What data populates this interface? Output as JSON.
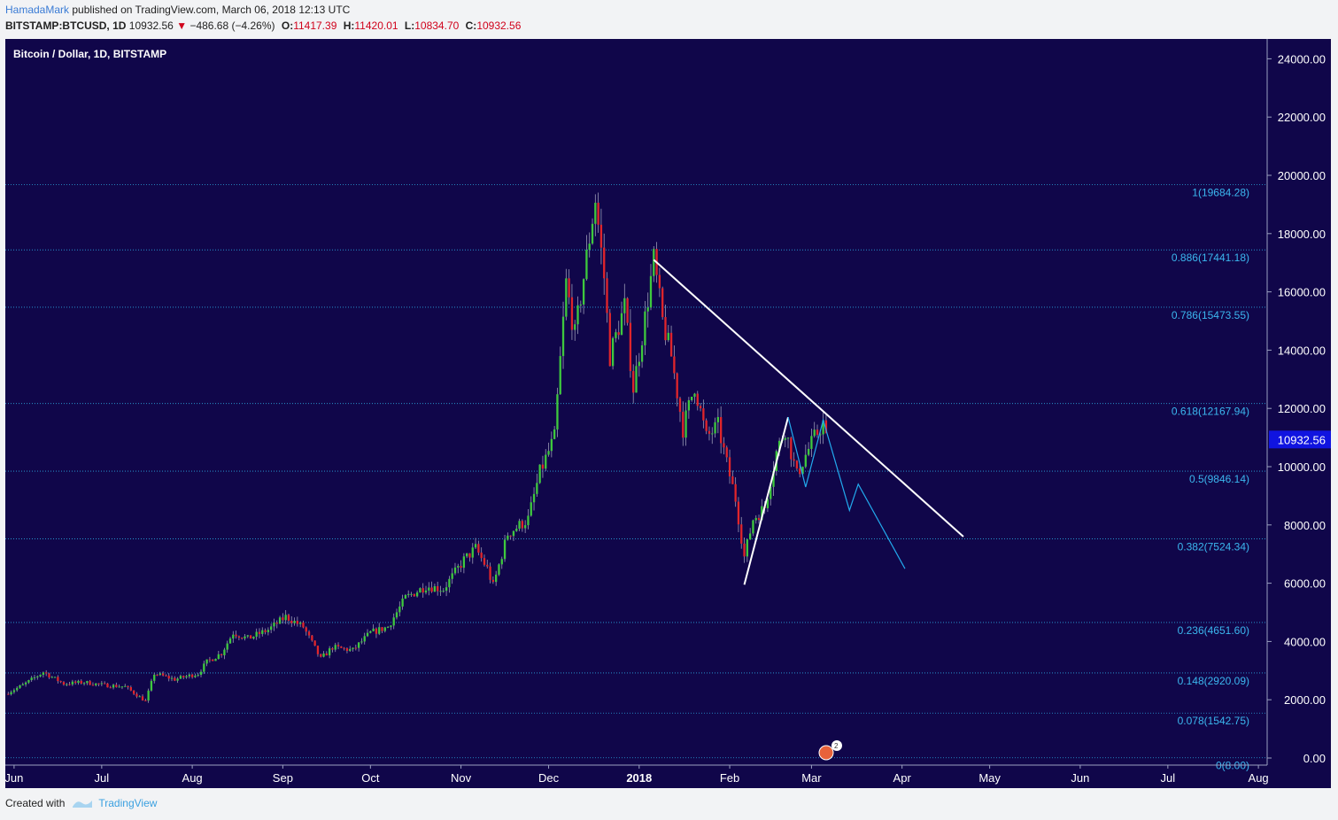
{
  "header": {
    "author": "HamadaMark",
    "published_text": "published on TradingView.com, March 06, 2018 12:13 UTC",
    "symbol": "BITSTAMP:BTCUSD, 1D",
    "last": "10932.56",
    "change": "−486.68 (−4.26%)",
    "o_label": "O:",
    "o_value": "11417.39",
    "h_label": "H:",
    "h_value": "11420.01",
    "l_label": "L:",
    "l_value": "10834.70",
    "c_label": "C:",
    "c_value": "10932.56"
  },
  "footer": {
    "created_with": "Created with",
    "brand": "TradingView"
  },
  "chart_data": {
    "type": "candlestick",
    "title": "Bitcoin / Dollar, 1D, BITSTAMP",
    "x_range": [
      "2017-05-29",
      "2018-08-04"
    ],
    "ylim": [
      0,
      24800
    ],
    "y_ticks": [
      0,
      2000,
      4000,
      6000,
      8000,
      10000,
      12000,
      14000,
      16000,
      18000,
      20000,
      22000,
      24000
    ],
    "y_tick_labels": [
      "0.00",
      "2000.00",
      "4000.00",
      "6000.00",
      "8000.00",
      "10000.00",
      "12000.00",
      "14000.00",
      "16000.00",
      "18000.00",
      "20000.00",
      "22000.00",
      "24000.00"
    ],
    "x_ticks": [
      {
        "label": "Jun",
        "date": "2017-06-01",
        "bold": false
      },
      {
        "label": "Jul",
        "date": "2017-07-01",
        "bold": false
      },
      {
        "label": "Aug",
        "date": "2017-08-01",
        "bold": false
      },
      {
        "label": "Sep",
        "date": "2017-09-01",
        "bold": false
      },
      {
        "label": "Oct",
        "date": "2017-10-01",
        "bold": false
      },
      {
        "label": "Nov",
        "date": "2017-11-01",
        "bold": false
      },
      {
        "label": "Dec",
        "date": "2017-12-01",
        "bold": false
      },
      {
        "label": "2018",
        "date": "2018-01-01",
        "bold": true
      },
      {
        "label": "Feb",
        "date": "2018-02-01",
        "bold": false
      },
      {
        "label": "Mar",
        "date": "2018-03-01",
        "bold": false
      },
      {
        "label": "Apr",
        "date": "2018-04-01",
        "bold": false
      },
      {
        "label": "May",
        "date": "2018-05-01",
        "bold": false
      },
      {
        "label": "Jun",
        "date": "2018-06-01",
        "bold": false
      },
      {
        "label": "Jul",
        "date": "2018-07-01",
        "bold": false
      },
      {
        "label": "Aug",
        "date": "2018-08-01",
        "bold": false
      }
    ],
    "price_label": {
      "value": 10932.56,
      "text": "10932.56"
    },
    "fib_levels": [
      {
        "value": 19684.28,
        "label": "1(19684.28)"
      },
      {
        "value": 17441.18,
        "label": "0.886(17441.18)"
      },
      {
        "value": 15473.55,
        "label": "0.786(15473.55)"
      },
      {
        "value": 12167.94,
        "label": "0.618(12167.94)"
      },
      {
        "value": 9846.14,
        "label": "0.5(9846.14)"
      },
      {
        "value": 7524.34,
        "label": "0.382(7524.34)"
      },
      {
        "value": 4651.6,
        "label": "0.236(4651.60)"
      },
      {
        "value": 2920.09,
        "label": "0.148(2920.09)"
      },
      {
        "value": 1542.75,
        "label": "0.078(1542.75)"
      },
      {
        "value": 8.0,
        "label": "0(8.00)"
      }
    ],
    "price_path": [
      [
        "2017-05-29",
        2200
      ],
      [
        "2017-06-04",
        2500
      ],
      [
        "2017-06-11",
        2950
      ],
      [
        "2017-06-18",
        2550
      ],
      [
        "2017-06-25",
        2600
      ],
      [
        "2017-07-02",
        2500
      ],
      [
        "2017-07-09",
        2450
      ],
      [
        "2017-07-16",
        1950
      ],
      [
        "2017-07-19",
        2900
      ],
      [
        "2017-07-26",
        2700
      ],
      [
        "2017-08-03",
        2900
      ],
      [
        "2017-08-06",
        3300
      ],
      [
        "2017-08-11",
        3600
      ],
      [
        "2017-08-15",
        4300
      ],
      [
        "2017-08-20",
        4100
      ],
      [
        "2017-08-27",
        4400
      ],
      [
        "2017-09-02",
        4850
      ],
      [
        "2017-09-08",
        4500
      ],
      [
        "2017-09-14",
        3400
      ],
      [
        "2017-09-18",
        3800
      ],
      [
        "2017-09-25",
        3700
      ],
      [
        "2017-10-01",
        4300
      ],
      [
        "2017-10-07",
        4500
      ],
      [
        "2017-10-13",
        5500
      ],
      [
        "2017-10-20",
        5900
      ],
      [
        "2017-10-26",
        5800
      ],
      [
        "2017-11-02",
        6800
      ],
      [
        "2017-11-06",
        7200
      ],
      [
        "2017-11-10",
        6500
      ],
      [
        "2017-11-12",
        5900
      ],
      [
        "2017-11-17",
        7700
      ],
      [
        "2017-11-24",
        8200
      ],
      [
        "2017-11-28",
        9800
      ],
      [
        "2017-12-03",
        11000
      ],
      [
        "2017-12-07",
        16300
      ],
      [
        "2017-12-10",
        14500
      ],
      [
        "2017-12-13",
        16500
      ],
      [
        "2017-12-17",
        19200
      ],
      [
        "2017-12-20",
        16500
      ],
      [
        "2017-12-22",
        13800
      ],
      [
        "2017-12-27",
        15500
      ],
      [
        "2017-12-30",
        12700
      ],
      [
        "2018-01-03",
        15100
      ],
      [
        "2018-01-06",
        17100
      ],
      [
        "2018-01-09",
        15000
      ],
      [
        "2018-01-12",
        13800
      ],
      [
        "2018-01-16",
        11300
      ],
      [
        "2018-01-20",
        12800
      ],
      [
        "2018-01-24",
        11000
      ],
      [
        "2018-01-28",
        11400
      ],
      [
        "2018-01-31",
        10100
      ],
      [
        "2018-02-03",
        8900
      ],
      [
        "2018-02-06",
        6900
      ],
      [
        "2018-02-09",
        8200
      ],
      [
        "2018-02-13",
        8600
      ],
      [
        "2018-02-17",
        10500
      ],
      [
        "2018-02-20",
        11300
      ],
      [
        "2018-02-24",
        9700
      ],
      [
        "2018-02-27",
        10400
      ],
      [
        "2018-03-02",
        11000
      ],
      [
        "2018-03-05",
        11500
      ],
      [
        "2018-03-06",
        10932
      ]
    ],
    "trendlines": [
      {
        "kind": "resistance",
        "color": "#ffffff",
        "points": [
          [
            "2018-01-06",
            17100
          ],
          [
            "2018-04-22",
            7600
          ]
        ]
      },
      {
        "kind": "support",
        "color": "#ffffff",
        "points": [
          [
            "2018-02-06",
            5950
          ],
          [
            "2018-02-21",
            11700
          ]
        ]
      },
      {
        "kind": "projection",
        "color": "#22aaee",
        "points": [
          [
            "2018-02-21",
            11700
          ],
          [
            "2018-02-27",
            9300
          ],
          [
            "2018-03-05",
            11600
          ],
          [
            "2018-03-14",
            8500
          ],
          [
            "2018-03-17",
            9400
          ],
          [
            "2018-04-02",
            6500
          ]
        ]
      }
    ]
  }
}
